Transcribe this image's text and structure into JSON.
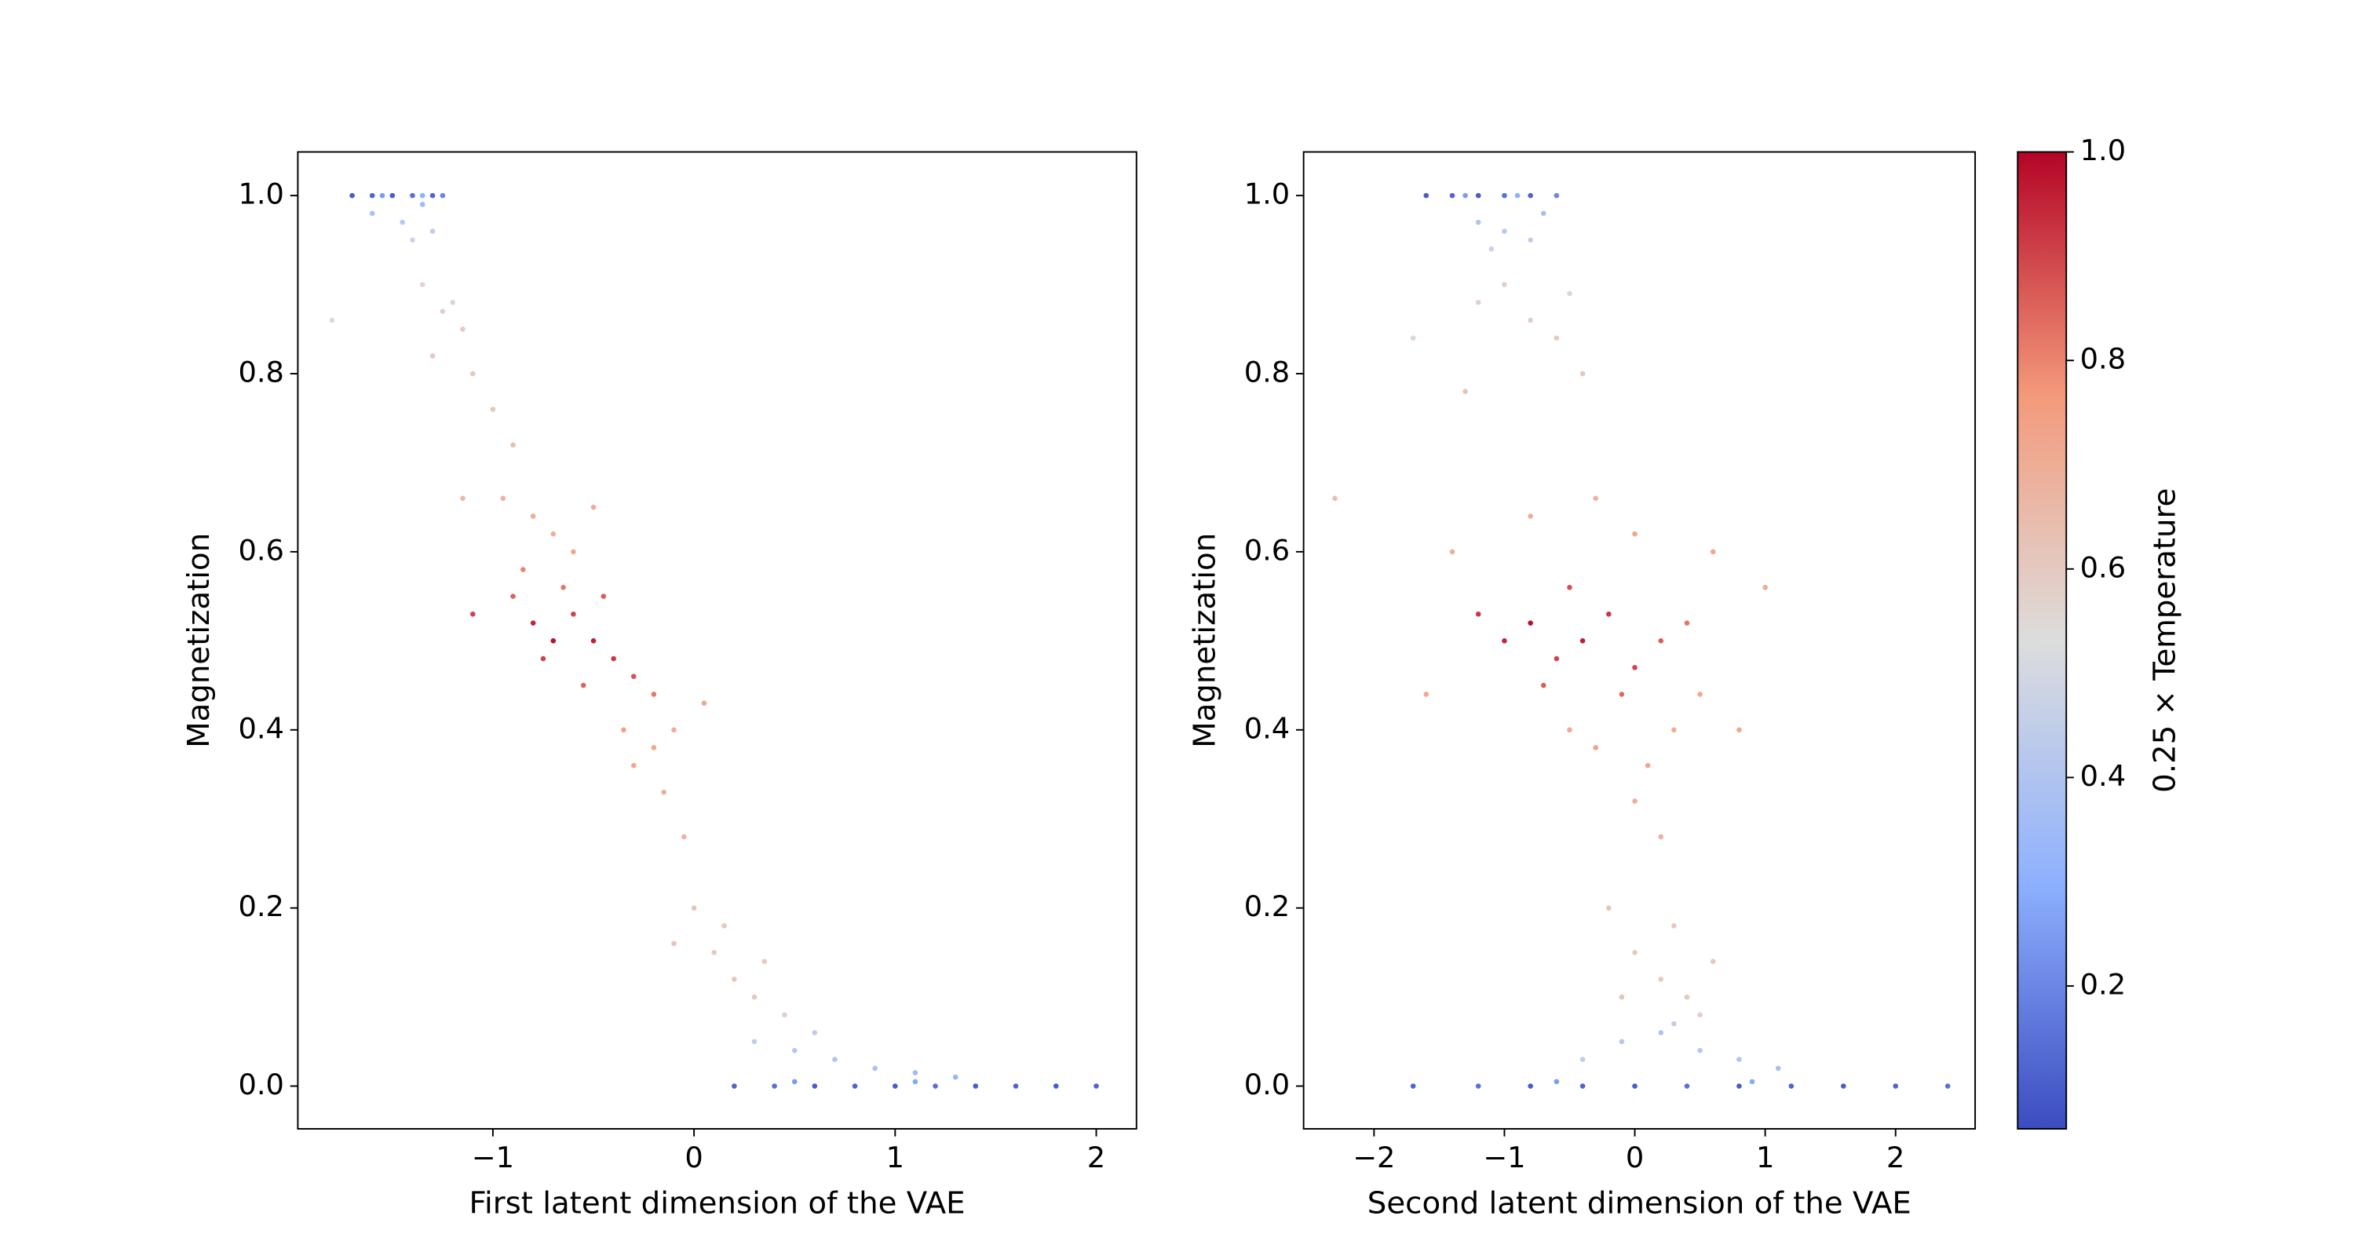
{
  "chart_data": [
    {
      "type": "scatter",
      "xlabel": "First latent dimension of the VAE",
      "ylabel": "Magnetization",
      "xlim": [
        -1.97,
        2.2
      ],
      "ylim": [
        -0.048,
        1.049
      ],
      "xticks": [
        {
          "value": -1,
          "label": "−1"
        },
        {
          "value": 0,
          "label": "0"
        },
        {
          "value": 1,
          "label": "1"
        },
        {
          "value": 2,
          "label": "2"
        }
      ],
      "yticks": [
        {
          "value": 0,
          "label": "0.0"
        },
        0.2,
        0.4,
        0.6,
        0.8,
        {
          "value": 1,
          "label": "1.0"
        }
      ],
      "points": [
        [
          -1.7,
          1,
          0.1
        ],
        [
          -1.6,
          1,
          0.12
        ],
        [
          -1.5,
          1,
          0.1
        ],
        [
          -1.4,
          1,
          0.15
        ],
        [
          -1.3,
          1,
          0.12
        ],
        [
          -1.25,
          1,
          0.2
        ],
        [
          -1.55,
          1,
          0.25
        ],
        [
          -1.35,
          1,
          0.3
        ],
        [
          -1.6,
          0.98,
          0.38
        ],
        [
          -1.45,
          0.97,
          0.42
        ],
        [
          -1.3,
          0.96,
          0.45
        ],
        [
          -1.4,
          0.95,
          0.48
        ],
        [
          -1.35,
          0.99,
          0.35
        ],
        [
          -1.8,
          0.86,
          0.55
        ],
        [
          -1.35,
          0.9,
          0.57
        ],
        [
          -1.25,
          0.87,
          0.58
        ],
        [
          -1.15,
          0.85,
          0.59
        ],
        [
          -1.3,
          0.82,
          0.6
        ],
        [
          -1.1,
          0.8,
          0.6
        ],
        [
          -1.2,
          0.88,
          0.56
        ],
        [
          -1.0,
          0.76,
          0.62
        ],
        [
          -0.9,
          0.72,
          0.64
        ],
        [
          -0.95,
          0.66,
          0.68
        ],
        [
          -0.8,
          0.64,
          0.7
        ],
        [
          -0.7,
          0.62,
          0.7
        ],
        [
          -1.15,
          0.66,
          0.66
        ],
        [
          -0.6,
          0.6,
          0.72
        ],
        [
          -0.5,
          0.65,
          0.7
        ],
        [
          -1.1,
          0.53,
          0.9
        ],
        [
          -0.9,
          0.55,
          0.85
        ],
        [
          -0.8,
          0.52,
          0.95
        ],
        [
          -0.7,
          0.5,
          0.98
        ],
        [
          -0.6,
          0.53,
          0.9
        ],
        [
          -0.5,
          0.5,
          0.96
        ],
        [
          -0.4,
          0.48,
          0.92
        ],
        [
          -0.3,
          0.46,
          0.88
        ],
        [
          -0.55,
          0.45,
          0.85
        ],
        [
          -0.75,
          0.48,
          0.9
        ],
        [
          -0.65,
          0.56,
          0.82
        ],
        [
          -0.45,
          0.55,
          0.86
        ],
        [
          -0.2,
          0.44,
          0.82
        ],
        [
          -0.85,
          0.58,
          0.8
        ],
        [
          -0.35,
          0.4,
          0.74
        ],
        [
          -0.2,
          0.38,
          0.72
        ],
        [
          -0.1,
          0.4,
          0.7
        ],
        [
          -0.3,
          0.36,
          0.72
        ],
        [
          0.05,
          0.43,
          0.72
        ],
        [
          -0.15,
          0.33,
          0.7
        ],
        [
          -0.05,
          0.28,
          0.68
        ],
        [
          0.0,
          0.2,
          0.62
        ],
        [
          0.1,
          0.15,
          0.6
        ],
        [
          0.2,
          0.12,
          0.6
        ],
        [
          0.3,
          0.1,
          0.6
        ],
        [
          0.15,
          0.18,
          0.61
        ],
        [
          0.35,
          0.14,
          0.6
        ],
        [
          -0.1,
          0.16,
          0.62
        ],
        [
          0.45,
          0.08,
          0.58
        ],
        [
          0.3,
          0.05,
          0.45
        ],
        [
          0.5,
          0.04,
          0.42
        ],
        [
          0.7,
          0.03,
          0.4
        ],
        [
          0.9,
          0.02,
          0.38
        ],
        [
          1.1,
          0.015,
          0.35
        ],
        [
          0.6,
          0.06,
          0.45
        ],
        [
          1.3,
          0.01,
          0.32
        ],
        [
          0.2,
          0,
          0.12
        ],
        [
          0.4,
          0,
          0.15
        ],
        [
          0.6,
          0,
          0.1
        ],
        [
          0.8,
          0,
          0.12
        ],
        [
          1.0,
          0,
          0.1
        ],
        [
          1.2,
          0,
          0.15
        ],
        [
          1.4,
          0,
          0.1
        ],
        [
          1.6,
          0,
          0.12
        ],
        [
          1.8,
          0,
          0.1
        ],
        [
          2.0,
          0,
          0.12
        ],
        [
          0.5,
          0.005,
          0.25
        ],
        [
          1.1,
          0.005,
          0.28
        ]
      ]
    },
    {
      "type": "scatter",
      "xlabel": "Second latent dimension of the VAE",
      "ylabel": "Magnetization",
      "xlim": [
        -2.54,
        2.61
      ],
      "ylim": [
        -0.048,
        1.049
      ],
      "xticks": [
        {
          "value": -2,
          "label": "−2"
        },
        {
          "value": -1,
          "label": "−1"
        },
        {
          "value": 0,
          "label": "0"
        },
        {
          "value": 1,
          "label": "1"
        },
        {
          "value": 2,
          "label": "2"
        }
      ],
      "yticks": [
        {
          "value": 0,
          "label": "0.0"
        },
        0.2,
        0.4,
        0.6,
        0.8,
        {
          "value": 1,
          "label": "1.0"
        }
      ],
      "points": [
        [
          -1.6,
          1,
          0.1
        ],
        [
          -1.4,
          1,
          0.12
        ],
        [
          -1.2,
          1,
          0.1
        ],
        [
          -1.0,
          1,
          0.15
        ],
        [
          -0.8,
          1,
          0.12
        ],
        [
          -0.6,
          1,
          0.2
        ],
        [
          -1.3,
          1,
          0.25
        ],
        [
          -0.9,
          1,
          0.3
        ],
        [
          -1.2,
          0.97,
          0.4
        ],
        [
          -1.0,
          0.96,
          0.42
        ],
        [
          -0.8,
          0.95,
          0.45
        ],
        [
          -0.7,
          0.98,
          0.38
        ],
        [
          -1.1,
          0.94,
          0.48
        ],
        [
          -1.7,
          0.84,
          0.56
        ],
        [
          -1.2,
          0.88,
          0.57
        ],
        [
          -1.0,
          0.9,
          0.58
        ],
        [
          -0.8,
          0.86,
          0.58
        ],
        [
          -0.6,
          0.84,
          0.6
        ],
        [
          -0.4,
          0.8,
          0.6
        ],
        [
          -1.3,
          0.78,
          0.62
        ],
        [
          -0.5,
          0.89,
          0.56
        ],
        [
          -2.3,
          0.66,
          0.64
        ],
        [
          -1.4,
          0.6,
          0.7
        ],
        [
          -0.8,
          0.64,
          0.7
        ],
        [
          0.0,
          0.62,
          0.72
        ],
        [
          0.6,
          0.6,
          0.72
        ],
        [
          1.0,
          0.56,
          0.7
        ],
        [
          -0.3,
          0.66,
          0.68
        ],
        [
          0.8,
          0.4,
          0.72
        ],
        [
          -1.6,
          0.44,
          0.72
        ],
        [
          -1.2,
          0.53,
          0.92
        ],
        [
          -1.0,
          0.5,
          0.95
        ],
        [
          -0.8,
          0.52,
          0.98
        ],
        [
          -0.6,
          0.48,
          0.9
        ],
        [
          -0.4,
          0.5,
          0.96
        ],
        [
          -0.2,
          0.53,
          0.92
        ],
        [
          0.0,
          0.47,
          0.9
        ],
        [
          0.2,
          0.5,
          0.86
        ],
        [
          -0.5,
          0.56,
          0.88
        ],
        [
          -0.1,
          0.44,
          0.84
        ],
        [
          0.4,
          0.52,
          0.82
        ],
        [
          -0.7,
          0.45,
          0.86
        ],
        [
          -0.3,
          0.38,
          0.74
        ],
        [
          0.1,
          0.36,
          0.72
        ],
        [
          0.3,
          0.4,
          0.7
        ],
        [
          -0.5,
          0.4,
          0.72
        ],
        [
          0.5,
          0.44,
          0.72
        ],
        [
          0.0,
          0.32,
          0.7
        ],
        [
          0.2,
          0.28,
          0.68
        ],
        [
          -0.2,
          0.2,
          0.62
        ],
        [
          0.0,
          0.15,
          0.6
        ],
        [
          0.2,
          0.12,
          0.6
        ],
        [
          0.4,
          0.1,
          0.6
        ],
        [
          0.3,
          0.18,
          0.61
        ],
        [
          0.6,
          0.14,
          0.6
        ],
        [
          -0.1,
          0.1,
          0.62
        ],
        [
          0.5,
          0.08,
          0.58
        ],
        [
          -0.4,
          0.03,
          0.45
        ],
        [
          -0.1,
          0.05,
          0.42
        ],
        [
          0.2,
          0.06,
          0.4
        ],
        [
          0.5,
          0.04,
          0.42
        ],
        [
          0.8,
          0.03,
          0.4
        ],
        [
          1.1,
          0.02,
          0.38
        ],
        [
          0.3,
          0.07,
          0.45
        ],
        [
          -1.7,
          0,
          0.12
        ],
        [
          -1.2,
          0,
          0.15
        ],
        [
          -0.8,
          0,
          0.1
        ],
        [
          -0.4,
          0,
          0.12
        ],
        [
          0.0,
          0,
          0.1
        ],
        [
          0.4,
          0,
          0.15
        ],
        [
          0.8,
          0,
          0.1
        ],
        [
          1.2,
          0,
          0.12
        ],
        [
          1.6,
          0,
          0.1
        ],
        [
          2.0,
          0,
          0.12
        ],
        [
          2.4,
          0,
          0.15
        ],
        [
          -0.6,
          0.005,
          0.25
        ],
        [
          0.9,
          0.005,
          0.28
        ]
      ]
    },
    {
      "type": "colorbar",
      "label": "0.25 × Temperature",
      "ylim": [
        0.063,
        1.0
      ],
      "yticks": [
        0.2,
        0.4,
        0.6,
        0.8,
        {
          "value": 1,
          "label": "1.0"
        }
      ],
      "colors": [
        "#3b4cc0",
        "#8db0fe",
        "#dddddd",
        "#f49a7b",
        "#b40426"
      ]
    }
  ]
}
